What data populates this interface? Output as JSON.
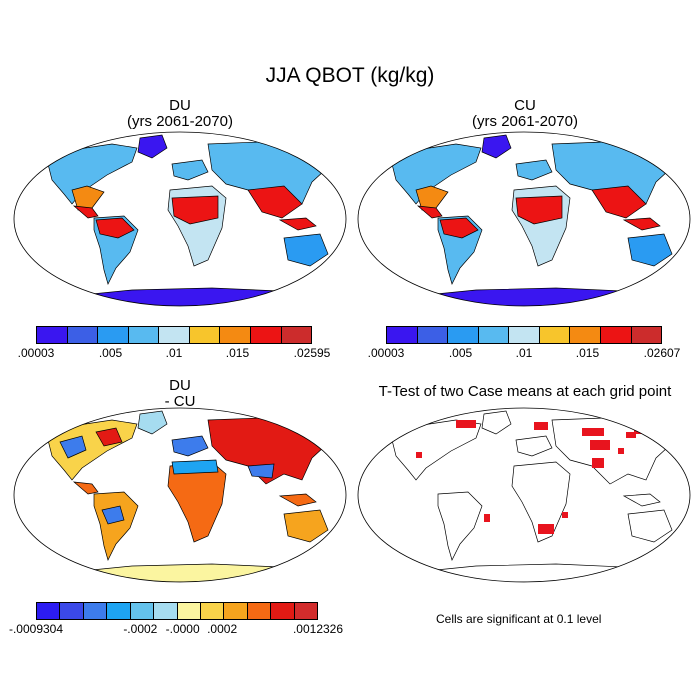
{
  "title": "JJA QBOT (kg/kg)",
  "panels": [
    {
      "id": "du",
      "title_line1": "DU",
      "title_line2": "(yrs 2061-2070)",
      "colorbar": {
        "colors": [
          "#3a16f0",
          "#3c5fe6",
          "#2a9bf2",
          "#58baf0",
          "#c3e4f2",
          "#f7c52c",
          "#f48a12",
          "#ec1414",
          "#cc2c2c"
        ],
        "labels": [
          ".00003",
          ".005",
          ".01",
          ".015",
          ".02595"
        ]
      }
    },
    {
      "id": "cu",
      "title_line1": "CU",
      "title_line2": "(yrs 2061-2070)",
      "colorbar": {
        "colors": [
          "#3a16f0",
          "#3c5fe6",
          "#2a9bf2",
          "#58baf0",
          "#c3e4f2",
          "#f7c52c",
          "#f48a12",
          "#ec1414",
          "#cc2c2c"
        ],
        "labels": [
          ".00003",
          ".005",
          ".01",
          ".015",
          ".02607"
        ]
      }
    },
    {
      "id": "diff",
      "title_line1": "DU",
      "title_line2": "- CU",
      "colorbar": {
        "colors": [
          "#2c1cf2",
          "#3b49e8",
          "#3d7cec",
          "#1ea4f2",
          "#64c2ec",
          "#a6dcf0",
          "#fbf5a0",
          "#f9d34a",
          "#f6a41e",
          "#f56a14",
          "#e21a14",
          "#d22c2c"
        ],
        "labels": [
          "-.0009304",
          "-.0002",
          "-.0000",
          ".0002",
          ".0012326"
        ]
      }
    },
    {
      "id": "ttest",
      "title_line1": "T-Test of two Case means at each grid point",
      "note": "Cells are significant at 0.1 level",
      "significance_color": "#e8141e"
    }
  ]
}
